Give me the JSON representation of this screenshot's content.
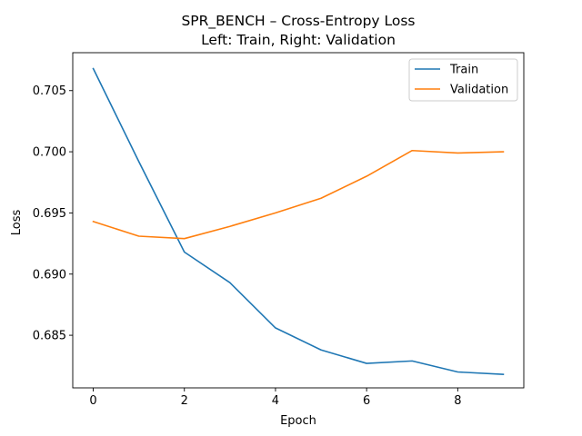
{
  "chart_data": {
    "type": "line",
    "title": "SPR_BENCH – Cross-Entropy Loss",
    "subtitle": "Left: Train, Right: Validation",
    "xlabel": "Epoch",
    "ylabel": "Loss",
    "xlim": [
      -0.45,
      9.45
    ],
    "ylim": [
      0.6807,
      0.7081
    ],
    "xticks": [
      0,
      2,
      4,
      6,
      8
    ],
    "yticks": [
      0.685,
      0.69,
      0.695,
      0.7,
      0.705
    ],
    "xtick_labels": [
      "0",
      "2",
      "4",
      "6",
      "8"
    ],
    "ytick_labels": [
      "0.685",
      "0.690",
      "0.695",
      "0.700",
      "0.705"
    ],
    "grid": false,
    "legend_position": "top-right",
    "x": [
      0,
      1,
      2,
      3,
      4,
      5,
      6,
      7,
      8,
      9
    ],
    "series": [
      {
        "name": "Train",
        "color": "#1f77b4",
        "values": [
          0.7068,
          0.6992,
          0.6918,
          0.6893,
          0.6856,
          0.6838,
          0.6827,
          0.6829,
          0.682,
          0.6818
        ]
      },
      {
        "name": "Validation",
        "color": "#ff7f0e",
        "values": [
          0.6943,
          0.6931,
          0.6929,
          0.6939,
          0.695,
          0.6962,
          0.698,
          0.7001,
          0.6999,
          0.7
        ]
      }
    ]
  }
}
